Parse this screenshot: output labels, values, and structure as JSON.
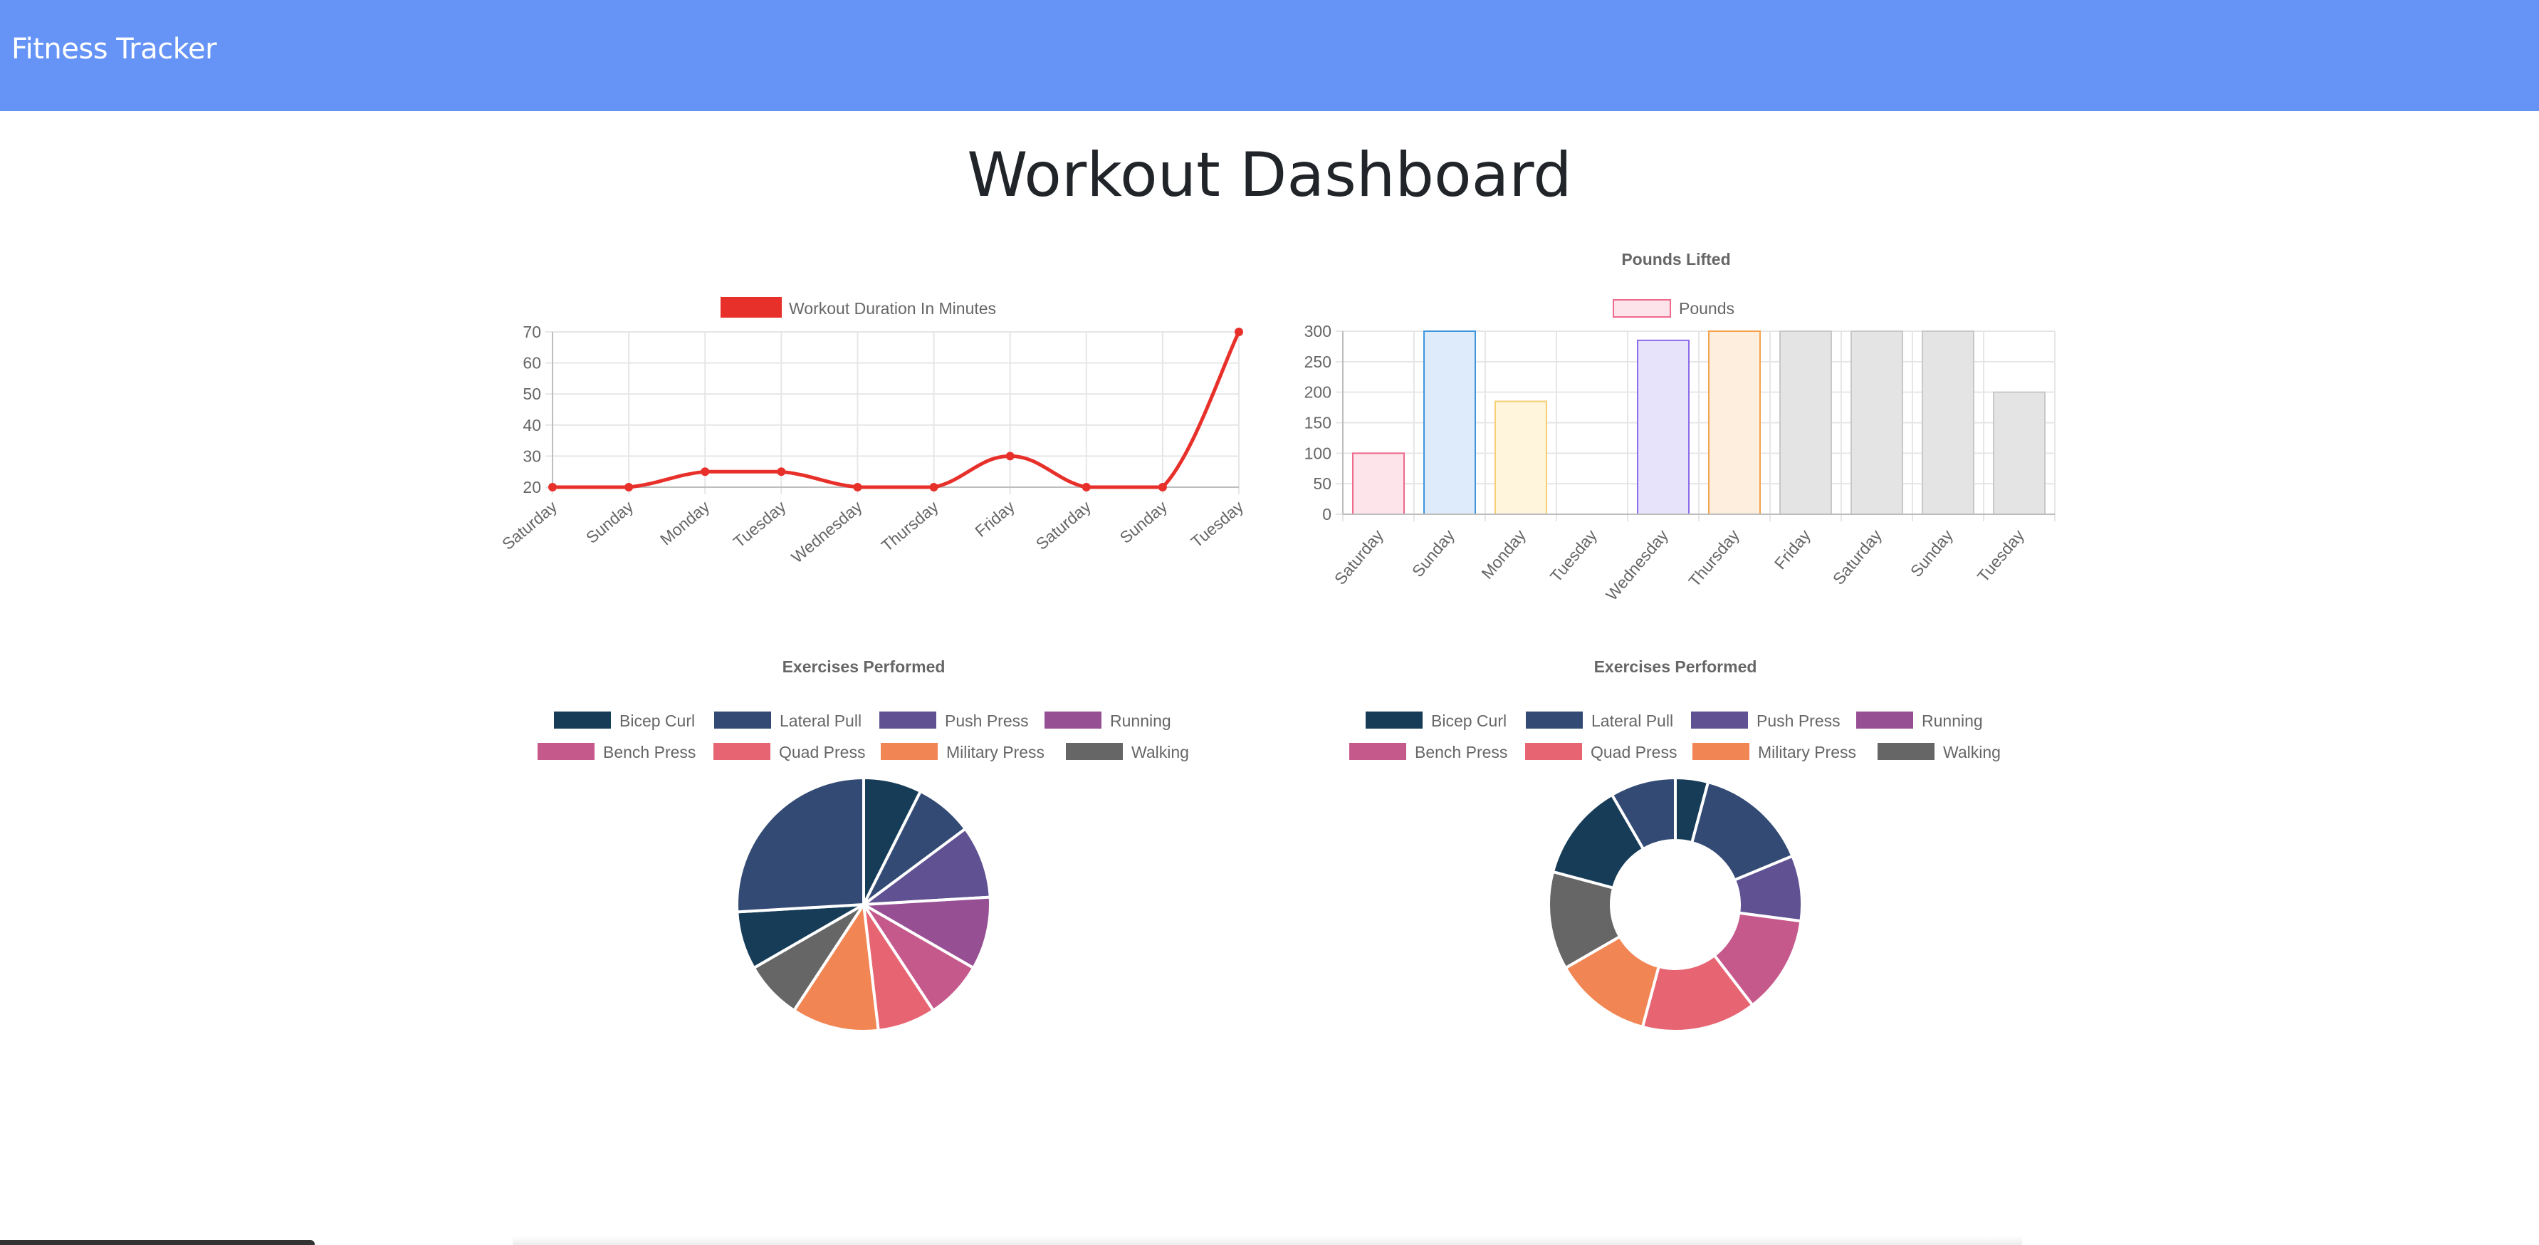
{
  "navbar": {
    "brand": "Fitness Tracker"
  },
  "page": {
    "title": "Workout Dashboard"
  },
  "chart_data": [
    {
      "id": "duration",
      "type": "line",
      "title": "",
      "categories": [
        "Saturday",
        "Sunday",
        "Monday",
        "Tuesday",
        "Wednesday",
        "Thursday",
        "Friday",
        "Saturday",
        "Sunday",
        "Tuesday"
      ],
      "series": [
        {
          "name": "Workout Duration In Minutes",
          "values": [
            20,
            20,
            25,
            25,
            20,
            20,
            30,
            20,
            20,
            70
          ],
          "color": "#e8302b"
        }
      ],
      "ylim": [
        20,
        70
      ],
      "yticks": [
        20,
        30,
        40,
        50,
        60,
        70
      ],
      "grid": true,
      "legend": "top"
    },
    {
      "id": "pounds",
      "type": "bar",
      "title": "Pounds Lifted",
      "categories": [
        "Saturday",
        "Sunday",
        "Monday",
        "Tuesday",
        "Wednesday",
        "Thursday",
        "Friday",
        "Saturday",
        "Sunday",
        "Tuesday"
      ],
      "series": [
        {
          "name": "Pounds",
          "values": [
            100,
            300,
            185,
            0,
            285,
            300,
            300,
            300,
            300,
            200
          ]
        }
      ],
      "bar_fills": [
        "#fce4ea",
        "#ddebfa",
        "#fff4dc",
        "#ececf5",
        "#e7e3fb",
        "#fdeede",
        "#e4e4e4",
        "#e4e4e4",
        "#e4e4e4",
        "#e4e4e4"
      ],
      "bar_strokes": [
        "#ef6a8b",
        "#3f95dd",
        "#f6cf73",
        "#9bdada",
        "#8b6be9",
        "#f4a34c",
        "#c8c8c8",
        "#c8c8c8",
        "#c8c8c8",
        "#c8c8c8"
      ],
      "legend_fill": "#fce4ea",
      "legend_stroke": "#ef6a8b",
      "ylim": [
        0,
        300
      ],
      "yticks": [
        0,
        50,
        100,
        150,
        200,
        250,
        300
      ],
      "grid": true,
      "legend": "top"
    },
    {
      "id": "exercises-pie",
      "type": "pie",
      "title": "Exercises Performed",
      "legend_labels": [
        "Bicep Curl",
        "Lateral Pull",
        "Push Press",
        "Running",
        "Bench Press",
        "Quad Press",
        "Military Press",
        "Walking"
      ],
      "legend_colors": [
        "#163c58",
        "#334b74",
        "#5f5192",
        "#974f94",
        "#c6598b",
        "#e76572",
        "#f18553",
        "#666666"
      ],
      "values": [
        20,
        20,
        25,
        25,
        20,
        20,
        30,
        20,
        20,
        70
      ],
      "colors": [
        "#163c58",
        "#334b74",
        "#5f5192",
        "#974f94",
        "#c6598b",
        "#e76572",
        "#f18553",
        "#666666",
        "#163c58",
        "#334b74"
      ],
      "legend": "top"
    },
    {
      "id": "exercises-doughnut",
      "type": "pie",
      "title": "Exercises Performed",
      "legend_labels": [
        "Bicep Curl",
        "Lateral Pull",
        "Push Press",
        "Running",
        "Bench Press",
        "Quad Press",
        "Military Press",
        "Walking"
      ],
      "legend_colors": [
        "#163c58",
        "#334b74",
        "#5f5192",
        "#974f94",
        "#c6598b",
        "#e76572",
        "#f18553",
        "#666666"
      ],
      "values": [
        20,
        70,
        40,
        0,
        60,
        70,
        60,
        60,
        60,
        40
      ],
      "colors": [
        "#163c58",
        "#334b74",
        "#5f5192",
        "#974f94",
        "#c6598b",
        "#e76572",
        "#f18553",
        "#666666",
        "#163c58",
        "#334b74"
      ],
      "legend": "top"
    }
  ]
}
